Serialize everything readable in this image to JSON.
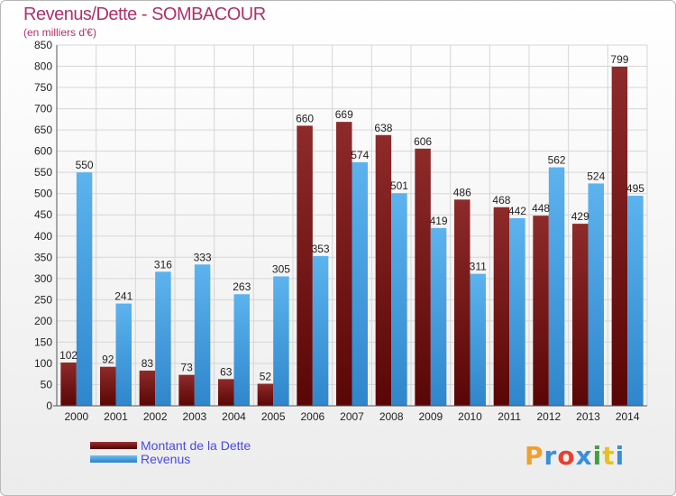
{
  "title": "Revenus/Dette - SOMBACOUR",
  "subtitle": "(en milliers d'€)",
  "logo": {
    "text": "Proxiti",
    "colors": [
      "#f0a030",
      "#3a8fd8",
      "#e84030",
      "#3a8fd8",
      "#40a040",
      "#e8c020",
      "#3a8fd8"
    ]
  },
  "chart_data": {
    "type": "bar",
    "title": "Revenus/Dette - SOMBACOUR",
    "subtitle": "(en milliers d'€)",
    "categories": [
      "2000",
      "2001",
      "2002",
      "2003",
      "2004",
      "2005",
      "2006",
      "2007",
      "2008",
      "2009",
      "2010",
      "2011",
      "2012",
      "2013",
      "2014"
    ],
    "series": [
      {
        "name": "Montant de la Dette",
        "color": "#7a1616",
        "values": [
          102,
          92,
          83,
          73,
          63,
          52,
          660,
          669,
          638,
          606,
          486,
          468,
          448,
          429,
          799
        ]
      },
      {
        "name": "Revenus",
        "color": "#3d9fe3",
        "values": [
          550,
          241,
          316,
          333,
          263,
          305,
          353,
          574,
          501,
          419,
          311,
          442,
          562,
          524,
          495
        ]
      }
    ],
    "ylim": [
      0,
      850
    ],
    "yticks": [
      0,
      50,
      100,
      150,
      200,
      250,
      300,
      350,
      400,
      450,
      500,
      550,
      600,
      650,
      700,
      750,
      800,
      850
    ],
    "grid": true,
    "legend": "bottom-left"
  }
}
